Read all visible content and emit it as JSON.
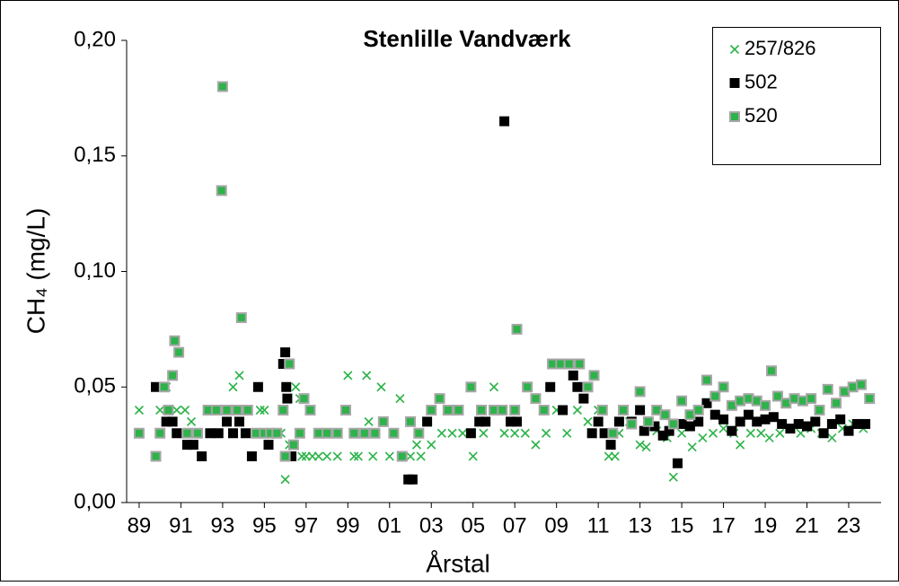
{
  "chart_data": {
    "type": "scatter",
    "title": "Stenlille Vandværk",
    "x_label": "Årstal",
    "y_label": "CH₄ (mg/L)",
    "xlim": [
      1988.4,
      2024.55
    ],
    "ylim": [
      0,
      0.2
    ],
    "xticks": [
      {
        "value": 1989,
        "label": "89"
      },
      {
        "value": 1991,
        "label": "91"
      },
      {
        "value": 1993,
        "label": "93"
      },
      {
        "value": 1995,
        "label": "95"
      },
      {
        "value": 1997,
        "label": "97"
      },
      {
        "value": 1999,
        "label": "99"
      },
      {
        "value": 2001,
        "label": "01"
      },
      {
        "value": 2003,
        "label": "03"
      },
      {
        "value": 2005,
        "label": "05"
      },
      {
        "value": 2007,
        "label": "07"
      },
      {
        "value": 2009,
        "label": "09"
      },
      {
        "value": 2011,
        "label": "11"
      },
      {
        "value": 2013,
        "label": "13"
      },
      {
        "value": 2015,
        "label": "15"
      },
      {
        "value": 2017,
        "label": "17"
      },
      {
        "value": 2019,
        "label": "19"
      },
      {
        "value": 2021,
        "label": "21"
      },
      {
        "value": 2023,
        "label": "23"
      }
    ],
    "yticks": [
      {
        "value": 0,
        "label": "0,00"
      },
      {
        "value": 0.05,
        "label": "0,05"
      },
      {
        "value": 0.1,
        "label": "0,10"
      },
      {
        "value": 0.15,
        "label": "0,15"
      },
      {
        "value": 0.2,
        "label": "0,20"
      }
    ],
    "legend": "upper right",
    "series": [
      {
        "name": "257/826",
        "color": "#2db34a",
        "marker": "x",
        "x": [
          1989.0,
          1989.8,
          1990.0,
          1990.3,
          1990.5,
          1990.8,
          1991.2,
          1991.5,
          1991.8,
          1992.5,
          1993.5,
          1993.8,
          1994.2,
          1994.8,
          1995.0,
          1995.5,
          1995.8,
          1996.0,
          1996.2,
          1996.5,
          1996.7,
          1996.8,
          1997.0,
          1997.3,
          1997.6,
          1998.0,
          1998.5,
          1999.0,
          1999.3,
          1999.5,
          1999.9,
          2000.0,
          2000.2,
          2000.6,
          2001.0,
          2001.5,
          2002.0,
          2002.3,
          2002.5,
          2003.0,
          2003.5,
          2004.0,
          2004.5,
          2005.0,
          2005.5,
          2006.0,
          2006.5,
          2007.0,
          2007.5,
          2008.0,
          2008.5,
          2009.0,
          2009.5,
          2010.0,
          2010.5,
          2011.0,
          2011.5,
          2011.8,
          2012.0,
          2012.5,
          2013.0,
          2013.3,
          2013.8,
          2014.3,
          2014.6,
          2015.0,
          2015.5,
          2016.0,
          2016.5,
          2017.0,
          2017.5,
          2017.8,
          2018.3,
          2018.8,
          2019.2,
          2019.7,
          2020.2,
          2020.7,
          2021.2,
          2021.7,
          2022.2,
          2022.7,
          2023.2,
          2023.7
        ],
        "values": [
          0.04,
          0.02,
          0.04,
          0.05,
          0.035,
          0.04,
          0.04,
          0.035,
          0.03,
          0.04,
          0.05,
          0.055,
          0.04,
          0.04,
          0.04,
          0.03,
          0.03,
          0.01,
          0.025,
          0.05,
          0.045,
          0.02,
          0.02,
          0.02,
          0.02,
          0.02,
          0.02,
          0.055,
          0.02,
          0.02,
          0.055,
          0.035,
          0.02,
          0.05,
          0.02,
          0.045,
          0.02,
          0.025,
          0.02,
          0.025,
          0.03,
          0.03,
          0.03,
          0.02,
          0.03,
          0.05,
          0.03,
          0.03,
          0.03,
          0.025,
          0.03,
          0.04,
          0.03,
          0.04,
          0.035,
          0.04,
          0.02,
          0.02,
          0.03,
          0.035,
          0.025,
          0.024,
          0.031,
          0.028,
          0.011,
          0.03,
          0.024,
          0.028,
          0.03,
          0.032,
          0.03,
          0.025,
          0.03,
          0.03,
          0.028,
          0.03,
          0.032,
          0.03,
          0.032,
          0.03,
          0.028,
          0.032,
          0.034,
          0.032
        ]
      },
      {
        "name": "502",
        "color": "#000000",
        "marker": "square",
        "x": [
          1989.8,
          1990.0,
          1990.3,
          1990.6,
          1990.8,
          1991.3,
          1991.6,
          1992.0,
          1992.4,
          1992.8,
          1993.2,
          1993.5,
          1993.8,
          1994.1,
          1994.4,
          1994.7,
          1995.2,
          1995.6,
          1995.9,
          1996.0,
          1996.05,
          1996.1,
          1996.3,
          2001.9,
          2002.1,
          2002.8,
          2004.9,
          2005.3,
          2005.6,
          2006.5,
          2006.8,
          2007.1,
          2008.7,
          2009.3,
          2009.8,
          2010.0,
          2010.3,
          2010.7,
          2011.0,
          2011.3,
          2011.6,
          2012.0,
          2012.6,
          2013.0,
          2013.2,
          2013.7,
          2014.1,
          2014.4,
          2014.8,
          2015.0,
          2015.4,
          2015.8,
          2016.2,
          2016.6,
          2017.0,
          2017.4,
          2017.8,
          2018.2,
          2018.6,
          2019.0,
          2019.4,
          2019.8,
          2020.2,
          2020.6,
          2021.0,
          2021.4,
          2021.8,
          2022.2,
          2022.6,
          2023.0,
          2023.4,
          2023.8
        ],
        "values": [
          0.05,
          0.03,
          0.035,
          0.035,
          0.03,
          0.025,
          0.025,
          0.02,
          0.03,
          0.03,
          0.035,
          0.03,
          0.035,
          0.03,
          0.02,
          0.05,
          0.025,
          0.03,
          0.06,
          0.065,
          0.05,
          0.045,
          0.02,
          0.01,
          0.01,
          0.035,
          0.03,
          0.035,
          0.035,
          0.165,
          0.035,
          0.035,
          0.05,
          0.04,
          0.055,
          0.05,
          0.045,
          0.03,
          0.035,
          0.03,
          0.025,
          0.035,
          0.035,
          0.04,
          0.031,
          0.033,
          0.029,
          0.031,
          0.017,
          0.034,
          0.033,
          0.035,
          0.043,
          0.038,
          0.036,
          0.031,
          0.035,
          0.038,
          0.035,
          0.036,
          0.037,
          0.034,
          0.032,
          0.034,
          0.033,
          0.035,
          0.03,
          0.034,
          0.036,
          0.031,
          0.034,
          0.034
        ]
      },
      {
        "name": "520",
        "color": "#2db34a",
        "edgecolor": "#a6a6a6",
        "marker": "square",
        "x": [
          1989.0,
          1989.8,
          1990.0,
          1990.2,
          1990.4,
          1990.6,
          1990.7,
          1990.9,
          1991.3,
          1991.8,
          1992.3,
          1992.7,
          1993.0,
          1992.95,
          1993.2,
          1993.7,
          1993.9,
          1994.2,
          1994.6,
          1995.0,
          1995.3,
          1995.6,
          1995.9,
          1996.0,
          1996.2,
          1996.4,
          1996.7,
          1996.9,
          1997.2,
          1997.6,
          1998.0,
          1998.5,
          1998.9,
          1999.3,
          1999.8,
          2000.3,
          2000.7,
          2001.2,
          2001.6,
          2002.0,
          2002.4,
          2003.0,
          2003.4,
          2003.8,
          2004.3,
          2004.9,
          2005.4,
          2006.0,
          2006.4,
          2007.0,
          2007.1,
          2007.6,
          2008.0,
          2008.4,
          2008.8,
          2009.2,
          2009.6,
          2010.1,
          2010.5,
          2010.8,
          2011.2,
          2011.7,
          2012.2,
          2012.6,
          2013.0,
          2013.4,
          2013.8,
          2014.2,
          2014.6,
          2015.0,
          2015.4,
          2015.8,
          2016.2,
          2016.6,
          2017.0,
          2017.4,
          2017.8,
          2018.2,
          2018.6,
          2019.0,
          2019.3,
          2019.6,
          2020.0,
          2020.4,
          2020.8,
          2021.2,
          2021.6,
          2022.0,
          2022.4,
          2022.8,
          2023.2,
          2023.6,
          2024.0
        ],
        "values": [
          0.03,
          0.02,
          0.03,
          0.05,
          0.04,
          0.055,
          0.07,
          0.065,
          0.03,
          0.03,
          0.04,
          0.04,
          0.18,
          0.135,
          0.04,
          0.04,
          0.08,
          0.04,
          0.03,
          0.03,
          0.03,
          0.03,
          0.04,
          0.02,
          0.06,
          0.025,
          0.03,
          0.045,
          0.04,
          0.03,
          0.03,
          0.03,
          0.04,
          0.03,
          0.03,
          0.03,
          0.035,
          0.03,
          0.02,
          0.035,
          0.03,
          0.04,
          0.045,
          0.04,
          0.04,
          0.05,
          0.04,
          0.04,
          0.04,
          0.04,
          0.075,
          0.05,
          0.045,
          0.04,
          0.06,
          0.06,
          0.06,
          0.06,
          0.05,
          0.055,
          0.04,
          0.03,
          0.04,
          0.034,
          0.048,
          0.035,
          0.04,
          0.038,
          0.034,
          0.044,
          0.038,
          0.04,
          0.053,
          0.046,
          0.05,
          0.042,
          0.044,
          0.045,
          0.044,
          0.042,
          0.057,
          0.046,
          0.043,
          0.045,
          0.044,
          0.045,
          0.04,
          0.049,
          0.043,
          0.048,
          0.05,
          0.051,
          0.045
        ]
      }
    ]
  }
}
